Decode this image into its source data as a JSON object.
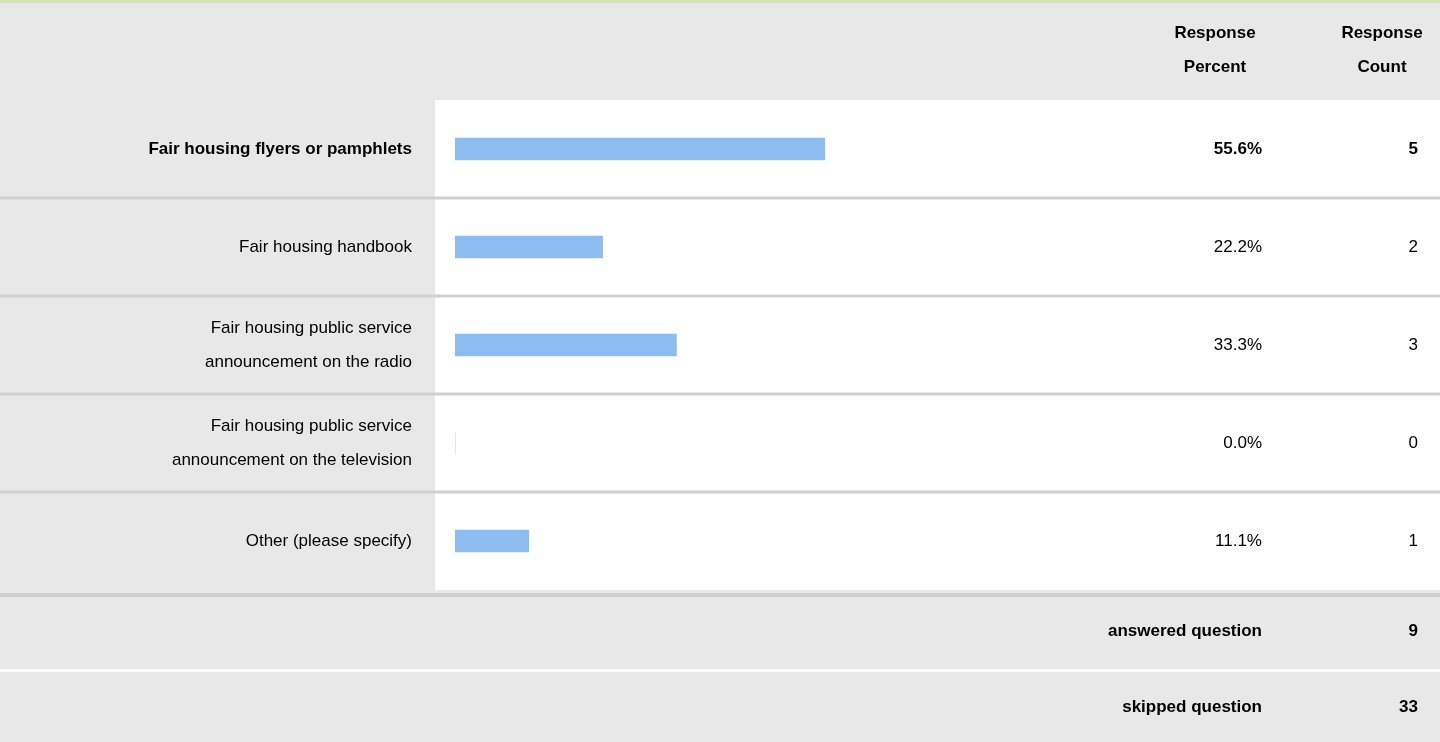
{
  "chart_data": {
    "type": "bar",
    "orientation": "horizontal",
    "categories": [
      "Fair housing flyers or pamphlets",
      "Fair housing handbook",
      "Fair housing public service announcement on the radio",
      "Fair housing public service announcement on the television",
      "Other (please specify)"
    ],
    "values": [
      55.6,
      22.2,
      33.3,
      0,
      11.1
    ],
    "color": "#8dbdf0",
    "tick_labels": "y",
    "value_labels": [
      "55.6%",
      "22.2%",
      "33.3%",
      "0.0%",
      "11.1%"
    ],
    "annotations": [
      "Response Percent",
      "Response Count",
      "5",
      "2",
      "3",
      "0",
      "1",
      "answered question",
      "9",
      "skipped question",
      "33"
    ]
  }
}
